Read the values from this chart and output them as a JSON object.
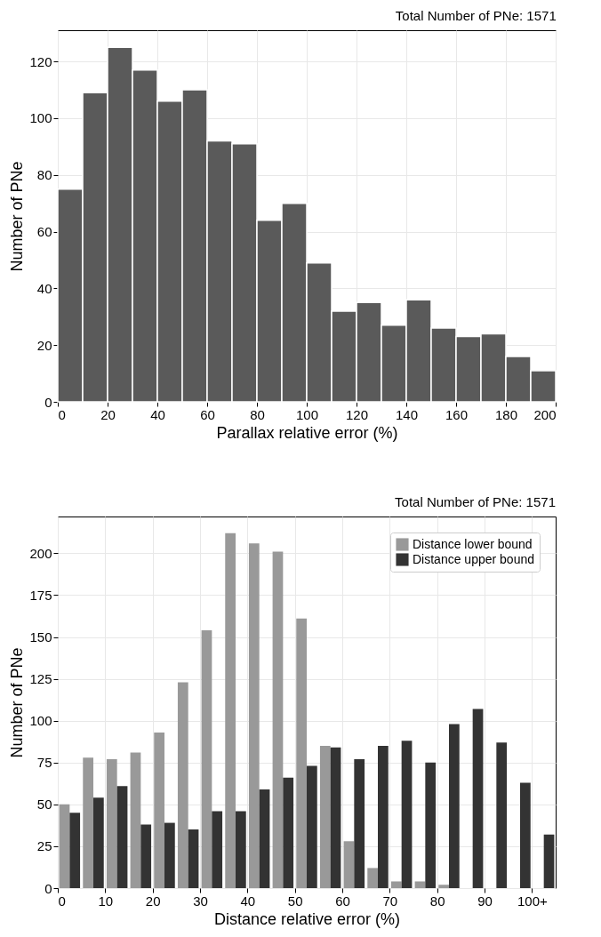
{
  "chart_data": [
    {
      "type": "histogram",
      "title": "Total Number of PNe: 1571",
      "xlabel": "Parallax relative error (%)",
      "ylabel": "Number of PNe",
      "color": "#5a5a5a",
      "bins": [
        0,
        10,
        20,
        30,
        40,
        50,
        60,
        70,
        80,
        90,
        100,
        110,
        120,
        130,
        140,
        150,
        160,
        170,
        180,
        190,
        200
      ],
      "values": [
        75,
        109,
        125,
        117,
        106,
        110,
        92,
        91,
        64,
        70,
        49,
        32,
        35,
        27,
        36,
        26,
        23,
        24,
        16,
        11
      ],
      "xlim": [
        0,
        200
      ],
      "xticks": [
        0,
        20,
        40,
        60,
        80,
        100,
        120,
        140,
        160,
        180,
        200
      ],
      "ylim": [
        0,
        131
      ],
      "yticks": [
        0,
        20,
        40,
        60,
        80,
        100,
        120
      ],
      "grid": true
    },
    {
      "type": "bar",
      "title": "Total Number of PNe: 1571",
      "xlabel": "Distance relative error (%)",
      "ylabel": "Number of PNe",
      "x": [
        2.5,
        7.5,
        12.5,
        17.5,
        22.5,
        27.5,
        32.5,
        37.5,
        42.5,
        47.5,
        52.5,
        57.5,
        62.5,
        67.5,
        72.5,
        77.5,
        82.5,
        87.5,
        92.5,
        97.5,
        102.5
      ],
      "series": [
        {
          "name": "Distance lower bound",
          "color": "#999999",
          "values": [
            50,
            78,
            77,
            81,
            93,
            123,
            154,
            212,
            206,
            201,
            161,
            85,
            28,
            12,
            4,
            4,
            2,
            0,
            0,
            0,
            0
          ]
        },
        {
          "name": "Distance upper bound",
          "color": "#333333",
          "values": [
            45,
            54,
            61,
            38,
            39,
            35,
            46,
            46,
            59,
            66,
            73,
            84,
            77,
            85,
            88,
            75,
            98,
            107,
            87,
            63,
            32
          ]
        }
      ],
      "xlim": [
        0,
        105
      ],
      "xticks": [
        0,
        10,
        20,
        30,
        40,
        50,
        60,
        70,
        80,
        90,
        {
          "value": 100,
          "label": "100+"
        }
      ],
      "ylim": [
        0,
        222
      ],
      "yticks": [
        0,
        25,
        50,
        75,
        100,
        125,
        150,
        175,
        200
      ],
      "grid": true,
      "legend": "top right"
    }
  ]
}
